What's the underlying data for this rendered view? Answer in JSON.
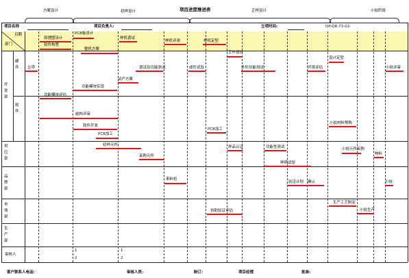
{
  "title": "项目进度推进表",
  "phases": [
    "方案设计",
    "初样设计",
    "正样设计",
    "小批阶段"
  ],
  "header": {
    "project_name_label": "项目名称",
    "project_lead_label": "项目负责人:",
    "start_time_label": "立项时间:",
    "doc_code": "DP/QR.73-02-"
  },
  "corner": {
    "top": "日期",
    "bottom": "部门"
  },
  "yellow_tasks": [
    "原理图设计",
    "软件构思",
    "PCB板设计",
    "样机调试",
    "样机评测",
    "样机定型"
  ],
  "departments": [
    {
      "label": "开发部",
      "sub": [
        "硬件",
        "软件"
      ]
    },
    {
      "label": "供应部",
      "sub": []
    },
    {
      "label": "品质部",
      "sub": []
    },
    {
      "label": "市场部",
      "sub": []
    },
    {
      "label": "生产部",
      "sub": []
    }
  ],
  "tasks": {
    "dev": [
      "立项",
      "功能模块评估",
      "工作设计",
      "调试及功能测试",
      "试产方案",
      "整机方案",
      "成形试验",
      "外形功能测试",
      "环境评估",
      "修改方案",
      "设计定型",
      "小批评审",
      "功能模块实现",
      "结构评审",
      "程序设计",
      "元器件",
      "软件开发",
      "修模",
      "模具",
      "PCB加工",
      "PCB加工",
      "小批材料预购"
    ],
    "supply": [
      "初样元件",
      "采购元件",
      "样品认证",
      "小批元件采购",
      "功能性测试",
      "元件定标",
      "样机试验",
      "物料"
    ],
    "quality": [
      "来料检",
      "验证计划",
      "确认",
      "小批"
    ],
    "market": [
      "协助验证评估",
      "生产工艺制定",
      "小批生产"
    ]
  },
  "signature": {
    "label": "审核人",
    "one": "1",
    "two": "2"
  },
  "footer": [
    "客户联系人电话:",
    "审核人员:",
    "制订:",
    "项目经理",
    "批准:"
  ]
}
